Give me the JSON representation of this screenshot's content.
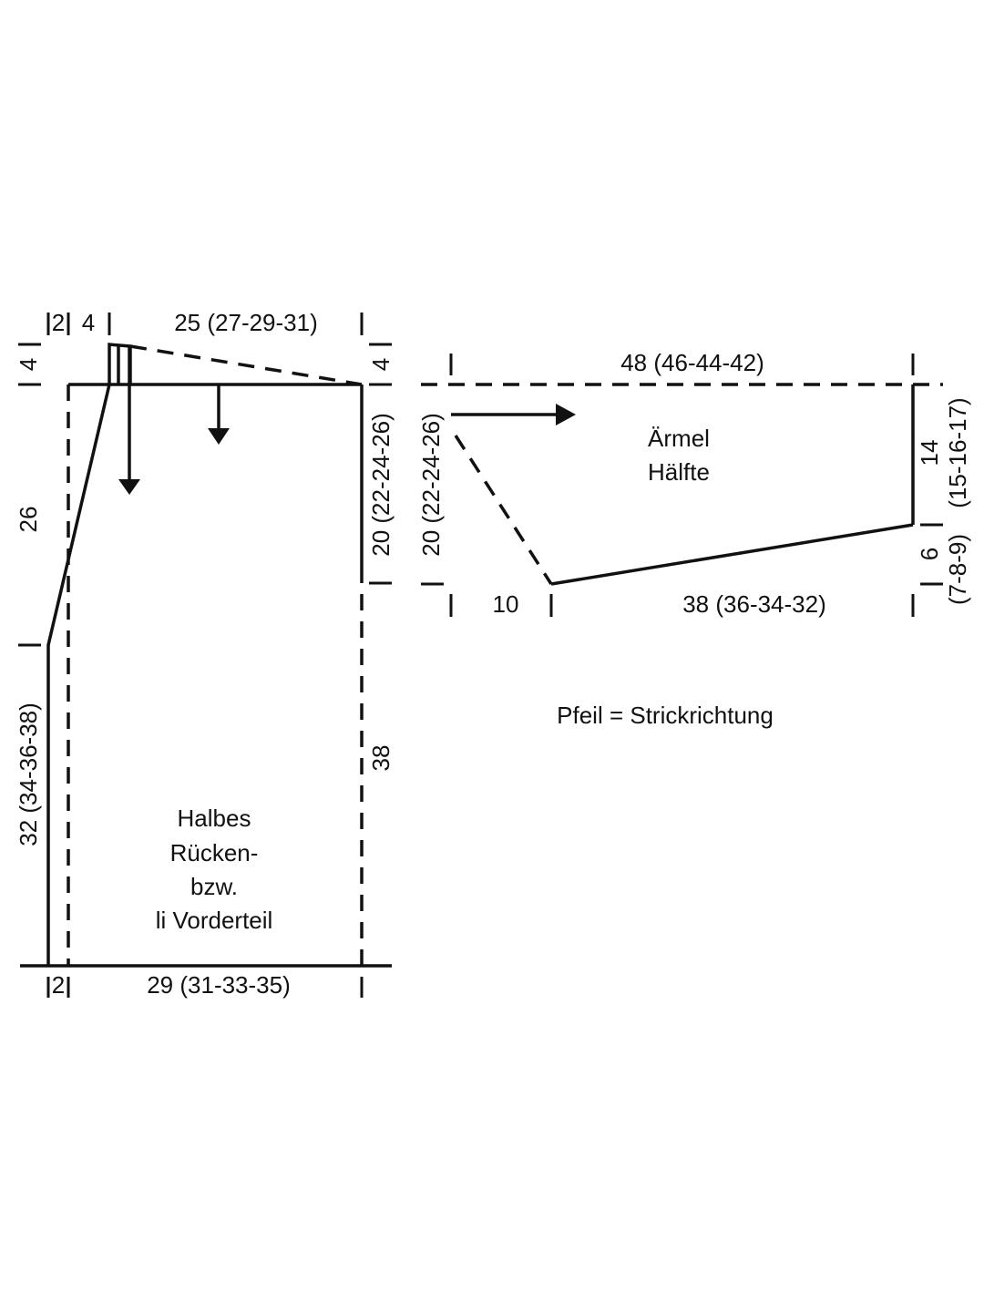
{
  "back": {
    "top_left_width": "2",
    "neck_width": "4",
    "shoulder_width": "25 (27-29-31)",
    "neck_depth_left": "4",
    "shoulder_drop_right": "4",
    "slope_height": "26",
    "armhole_height": "20 (22-24-26)",
    "lower_height": "32 (34-36-38)",
    "side_height": "38",
    "label": [
      "Halbes",
      "Rücken-",
      "bzw.",
      "li Vorderteil"
    ],
    "bottom_left_width": "2",
    "bottom_width": "29 (31-33-35)"
  },
  "sleeve": {
    "top_width": "48 (46-44-42)",
    "left_height": "20 (22-24-26)",
    "label": [
      "Ärmel",
      "Hälfte"
    ],
    "right_height": "14",
    "right_height_sizes": "(15-16-17)",
    "slope_drop": "6",
    "slope_drop_sizes": "(7-8-9)",
    "bottom_left_width": "10",
    "bottom_width": "38 (36-34-32)"
  },
  "note": "Pfeil = Strickrichtung"
}
